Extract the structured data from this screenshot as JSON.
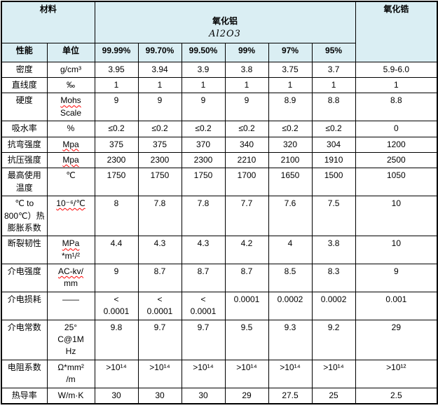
{
  "colors": {
    "header_bg": "#daeef3",
    "border": "#000000",
    "spellcheck_underline": "#ff0000",
    "text": "#000000"
  },
  "table": {
    "header": {
      "material": "材料",
      "alumina": "氧化铝",
      "alumina_formula": "Al2O3",
      "zirconia": "氧化锆",
      "property": "性能",
      "unit": "单位",
      "purities": [
        "99.99%",
        "99.70%",
        "99.50%",
        "99%",
        "97%",
        "95%"
      ]
    },
    "rows": [
      {
        "property": "密度",
        "unit": "g/cm³",
        "values": [
          "3.95",
          "3.94",
          "3.9",
          "3.8",
          "3.75",
          "3.7"
        ],
        "zirconia": "5.9-6.0"
      },
      {
        "property": "直线度",
        "unit": "‰",
        "values": [
          "1",
          "1",
          "1",
          "1",
          "1",
          "1"
        ],
        "zirconia": "1"
      },
      {
        "property": "硬度",
        "unit": "Mohs\nScale",
        "misspelled": [
          "Mohs"
        ],
        "values": [
          "9",
          "9",
          "9",
          "9",
          "8.9",
          "8.8"
        ],
        "zirconia": "8.8"
      },
      {
        "property": "吸水率",
        "unit": "%",
        "values": [
          "≤0.2",
          "≤0.2",
          "≤0.2",
          "≤0.2",
          "≤0.2",
          "≤0.2"
        ],
        "zirconia": "0"
      },
      {
        "property": "抗弯强度",
        "unit": "Mpa",
        "misspelled": [
          "Mpa"
        ],
        "values": [
          "375",
          "375",
          "370",
          "340",
          "320",
          "304"
        ],
        "zirconia": "1200"
      },
      {
        "property": "抗压强度",
        "unit": "Mpa",
        "misspelled": [
          "Mpa"
        ],
        "values": [
          "2300",
          "2300",
          "2300",
          "2210",
          "2100",
          "1910"
        ],
        "zirconia": "2500"
      },
      {
        "property": "最高使用温度",
        "unit": "℃",
        "values": [
          "1750",
          "1750",
          "1750",
          "1700",
          "1650",
          "1500"
        ],
        "zirconia": "1050"
      },
      {
        "property": "℃ to 800℃）热膨胀系数",
        "unit": "10⁻⁶/℃",
        "misspelled": [
          "10⁻⁶/℃"
        ],
        "values": [
          "8",
          "7.8",
          "7.8",
          "7.7",
          "7.6",
          "7.5"
        ],
        "zirconia": "10"
      },
      {
        "property": "断裂韧性",
        "unit": "MPa\n*m¹/²",
        "misspelled": [
          "MPa"
        ],
        "values": [
          "4.4",
          "4.3",
          "4.3",
          "4.2",
          "4",
          "3.8"
        ],
        "zirconia": "10"
      },
      {
        "property": "介电强度",
        "unit": "AC-kv/\nmm",
        "misspelled": [
          "AC-kv/"
        ],
        "values": [
          "9",
          "8.7",
          "8.7",
          "8.7",
          "8.5",
          "8.3"
        ],
        "zirconia": "9"
      },
      {
        "property": "介电损耗",
        "unit": "——",
        "values": [
          "<\n0.0001",
          "<\n0.0001",
          "<\n0.0001",
          "0.0001",
          "0.0002",
          "0.0002"
        ],
        "zirconia": "0.001"
      },
      {
        "property": "介电常数",
        "unit": "25°\nC@1M\nHz",
        "values": [
          "9.8",
          "9.7",
          "9.7",
          "9.5",
          "9.3",
          "9.2"
        ],
        "zirconia": "29"
      },
      {
        "property": "电阻系数",
        "unit": "Ω*mm²\n/m",
        "values": [
          ">10¹⁴",
          ">10¹⁴",
          ">10¹⁴",
          ">10¹⁴",
          ">10¹⁴",
          ">10¹⁴"
        ],
        "zirconia": ">10¹²"
      },
      {
        "property": "热导率",
        "unit": "W/m·K",
        "values": [
          "30",
          "30",
          "30",
          "29",
          "27.5",
          "25"
        ],
        "zirconia": "2.5"
      }
    ]
  }
}
